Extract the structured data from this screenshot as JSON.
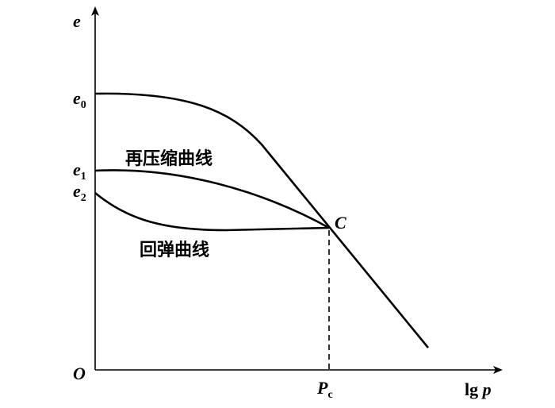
{
  "axes": {
    "y_label": "e",
    "x_label": {
      "base": "lg ",
      "var": "p"
    },
    "origin": "O"
  },
  "y_marks": [
    {
      "base": "e",
      "sub": "0"
    },
    {
      "base": "e",
      "sub": "1"
    },
    {
      "base": "e",
      "sub": "2"
    }
  ],
  "x_marks": [
    {
      "base": "P",
      "sub": "c"
    }
  ],
  "point": "C",
  "curves": [
    "再压缩曲线",
    "回弹曲线"
  ]
}
